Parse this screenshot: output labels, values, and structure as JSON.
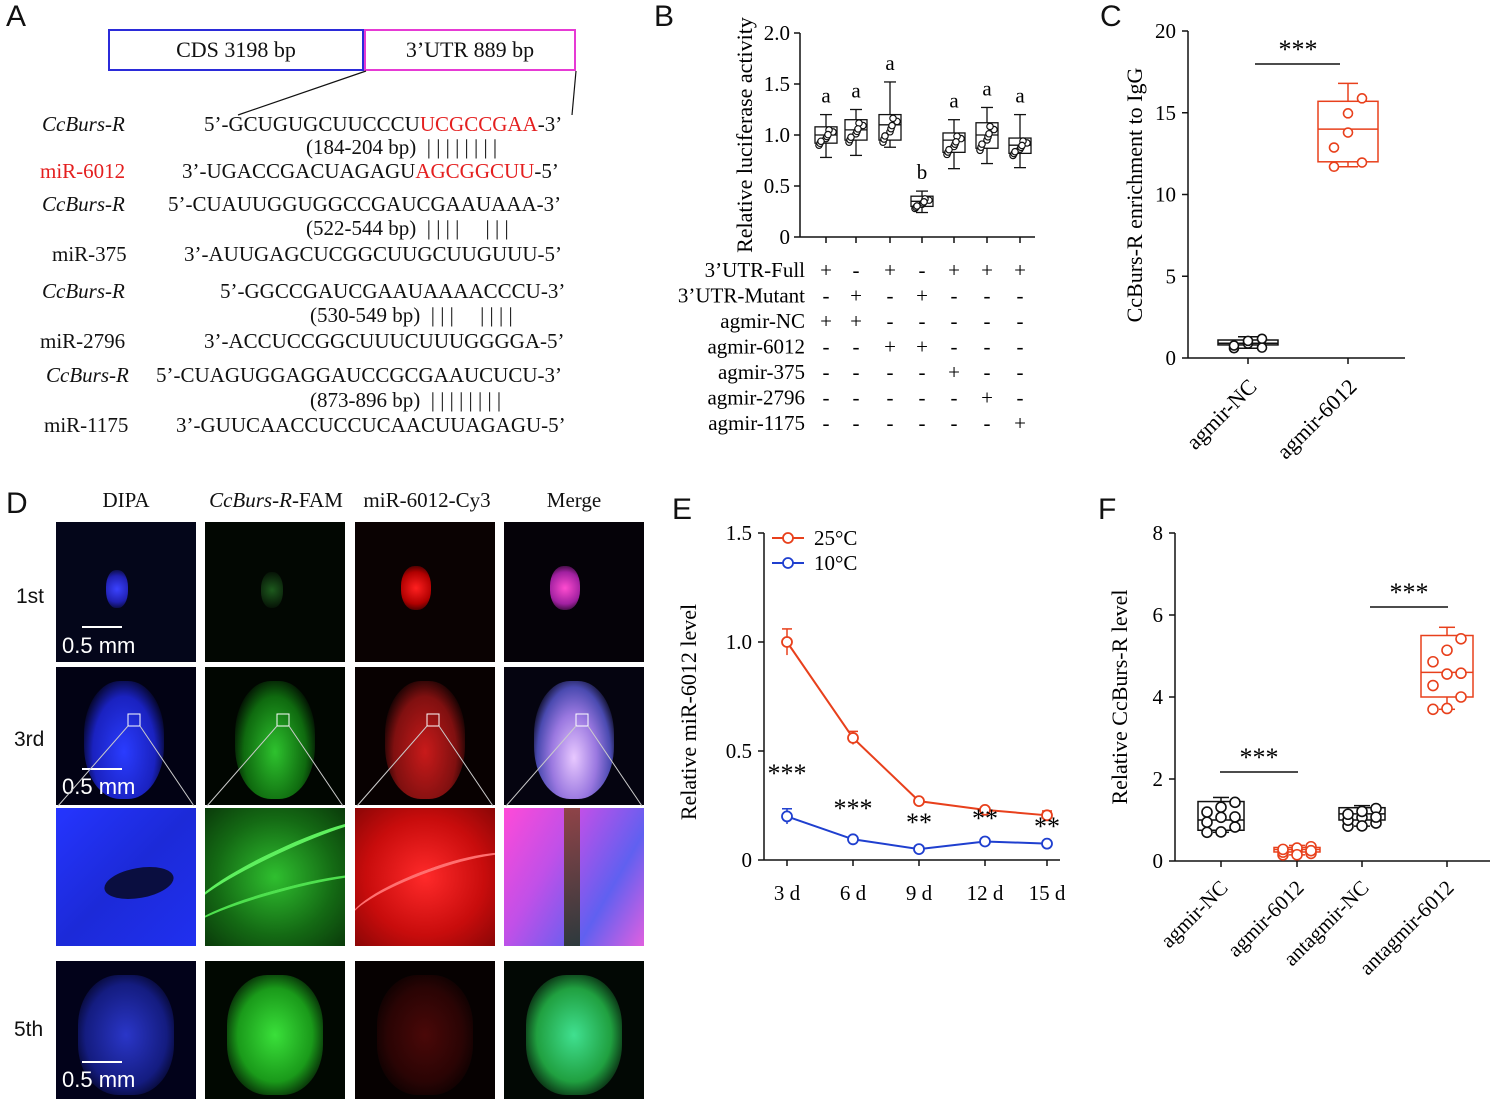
{
  "panels": {
    "A": "A",
    "B": "B",
    "C": "C",
    "D": "D",
    "E": "E",
    "F": "F"
  },
  "panelA": {
    "cds_label": "CDS 3198 bp",
    "utr_label": "3’UTR 889 bp",
    "pairs": [
      {
        "target_name": "CcBurs-R",
        "target_seq_pre": "5’-GCUGUGCUUCCCU",
        "target_seq_red": "UCGCCGAA",
        "target_seq_post": "-3’",
        "pos": "(184-204 bp)",
        "bars": "| | | | | | | |",
        "mir_name": "miR-6012",
        "mir_seq_pre": "3’-UGACCGACUAGAGU",
        "mir_seq_red": "AGCGGCUU",
        "mir_seq_post": "-5’"
      },
      {
        "target_name": "CcBurs-R",
        "target_seq": "5’-CUAUUGGUGGCCGAUCGAAUAAA-3’",
        "pos": "(522-544 bp)",
        "bars": "| | | |     | | |",
        "mir_name": "miR-375",
        "mir_seq": "3’-AUUGAGCUCGGCUUGCUUGUUU-5’"
      },
      {
        "target_name": "CcBurs-R",
        "target_seq": "5’-GGCCGAUCGAAUAAAACCCU-3’",
        "pos": "(530-549 bp)",
        "bars": "| | |     | | | |",
        "mir_name": "miR-2796",
        "mir_seq": "3’-ACCUCCGGCUUUCUUUGGGGA-5’"
      },
      {
        "target_name": "CcBurs-R",
        "target_seq": "5’-CUAGUGGAGGAUCCGCGAAUCUCU-3’",
        "pos": "(873-896 bp)",
        "bars": "| | | | | | | |",
        "mir_name": "miR-1175",
        "mir_seq": "3’-GUUCAACCUCCUCAACUUAGAGU-5’"
      }
    ]
  },
  "chart_data": [
    {
      "panel": "B",
      "type": "box",
      "ylabel": "Relative luciferase activity",
      "ylim": [
        0,
        2.0
      ],
      "yticks": [
        "0",
        "0.5",
        "1.0",
        "1.5",
        "2.0"
      ],
      "groups": [
        1,
        2,
        3,
        4,
        5,
        6,
        7
      ],
      "medians": [
        1.0,
        1.05,
        1.1,
        0.35,
        0.95,
        1.0,
        0.9
      ],
      "q1": [
        0.92,
        0.95,
        0.95,
        0.3,
        0.83,
        0.87,
        0.82
      ],
      "q3": [
        1.08,
        1.15,
        1.2,
        0.4,
        1.02,
        1.12,
        0.97
      ],
      "whisk_lo": [
        0.78,
        0.8,
        0.88,
        0.24,
        0.67,
        0.72,
        0.68
      ],
      "whisk_hi": [
        1.2,
        1.25,
        1.52,
        0.45,
        1.15,
        1.27,
        1.2
      ],
      "letters": [
        "a",
        "a",
        "a",
        "b",
        "a",
        "a",
        "a"
      ],
      "table_rows": [
        {
          "label": "3’UTR-Full",
          "marks": [
            "+",
            "-",
            "+",
            "-",
            "+",
            "+",
            "+"
          ]
        },
        {
          "label": "3’UTR-Mutant",
          "marks": [
            "-",
            "+",
            "-",
            "+",
            "-",
            "-",
            "-"
          ]
        },
        {
          "label": "agmir-NC",
          "marks": [
            "+",
            "+",
            "-",
            "-",
            "-",
            "-",
            "-"
          ]
        },
        {
          "label": "agmir-6012",
          "marks": [
            "-",
            "-",
            "+",
            "+",
            "-",
            "-",
            "-"
          ]
        },
        {
          "label": "agmir-375",
          "marks": [
            "-",
            "-",
            "-",
            "-",
            "+",
            "-",
            "-"
          ]
        },
        {
          "label": "agmir-2796",
          "marks": [
            "-",
            "-",
            "-",
            "-",
            "-",
            "+",
            "-"
          ]
        },
        {
          "label": "agmir-1175",
          "marks": [
            "-",
            "-",
            "-",
            "-",
            "-",
            "-",
            "+"
          ]
        }
      ]
    },
    {
      "panel": "C",
      "type": "box",
      "ylabel": "CcBurs-R enrichment to IgG",
      "ylim": [
        0,
        20
      ],
      "yticks": [
        "0",
        "5",
        "10",
        "15",
        "20"
      ],
      "categories": [
        "agmir-NC",
        "agmir-6012"
      ],
      "medians": [
        0.9,
        14.0
      ],
      "q1": [
        0.8,
        12.0
      ],
      "q3": [
        1.1,
        15.7
      ],
      "whisk_lo": [
        0.6,
        11.7
      ],
      "whisk_hi": [
        1.3,
        16.8
      ],
      "colors": [
        "#111111",
        "#e8401c"
      ],
      "significance": "***"
    },
    {
      "panel": "E",
      "type": "line",
      "ylabel": "Relative miR-6012 level",
      "ylim": [
        0,
        1.5
      ],
      "yticks": [
        "0",
        "0.5",
        "1.0",
        "1.5"
      ],
      "categories": [
        "3 d",
        "6 d",
        "9 d",
        "12 d",
        "15 d"
      ],
      "series": [
        {
          "name": "25°C",
          "color": "#e8401c",
          "values": [
            1.0,
            0.56,
            0.27,
            0.23,
            0.205
          ],
          "err": [
            0.06,
            0.03,
            0.01,
            0.01,
            0.02
          ]
        },
        {
          "name": "10°C",
          "color": "#1f3fcf",
          "values": [
            0.2,
            0.095,
            0.05,
            0.085,
            0.075
          ],
          "err": [
            0.035,
            0.01,
            0.005,
            0.01,
            0.01
          ]
        }
      ],
      "sig": [
        "***",
        "***",
        "**",
        "**",
        "**"
      ]
    },
    {
      "panel": "F",
      "type": "box",
      "ylabel": "Relative CcBurs-R level",
      "ylim": [
        0,
        8
      ],
      "yticks": [
        "0",
        "2",
        "4",
        "6",
        "8"
      ],
      "categories": [
        "agmir-NC",
        "agmir-6012",
        "antagmir-NC",
        "antagmir-6012"
      ],
      "medians": [
        1.0,
        0.28,
        1.15,
        4.6
      ],
      "q1": [
        0.75,
        0.22,
        1.0,
        4.0
      ],
      "q3": [
        1.45,
        0.33,
        1.3,
        5.5
      ],
      "whisk_lo": [
        0.7,
        0.15,
        0.85,
        3.7
      ],
      "whisk_hi": [
        1.55,
        0.38,
        1.35,
        5.7
      ],
      "colors": [
        "#111111",
        "#e8401c",
        "#111111",
        "#e8401c"
      ],
      "significance": [
        "***",
        "***"
      ]
    }
  ],
  "panelD": {
    "columns": [
      "DIPA",
      "CcBurs-R",
      "miR-6012-Cy3",
      "Merge"
    ],
    "fam_suffix": "-FAM",
    "rows": [
      "1st",
      "3rd",
      "5th"
    ],
    "scale": "0.5 mm"
  }
}
